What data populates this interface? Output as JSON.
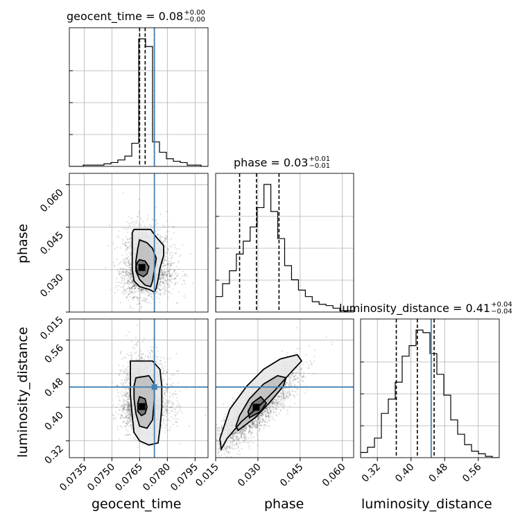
{
  "chart_data": {
    "type": "corner",
    "parameters": [
      "geocent_time",
      "phase",
      "luminosity_distance"
    ],
    "truths": {
      "geocent_time": 0.0773,
      "phase": null,
      "luminosity_distance": 0.448
    },
    "titles": [
      {
        "param": "geocent_time",
        "text": "geocent_time = 0.08",
        "plus": "+0.00",
        "minus": "−0.00"
      },
      {
        "param": "phase",
        "text": "phase = 0.03",
        "plus": "+0.01",
        "minus": "−0.01"
      },
      {
        "param": "luminosity_distance",
        "text": "luminosity_distance = 0.41",
        "plus": "+0.04",
        "minus": "−0.04"
      }
    ],
    "axis_labels": {
      "geocent_time": "geocent_time",
      "phase": "phase",
      "luminosity_distance": "luminosity_distance"
    },
    "ranges": {
      "geocent_time": [
        0.0727,
        0.0802
      ],
      "phase": [
        0.015,
        0.064
      ],
      "luminosity_distance": [
        0.28,
        0.61
      ]
    },
    "ticks": {
      "geocent_time": [
        "0.0735",
        "0.0750",
        "0.0765",
        "0.0780",
        "0.0795"
      ],
      "phase": [
        "0.015",
        "0.030",
        "0.045",
        "0.060"
      ],
      "luminosity_distance": [
        "0.32",
        "0.40",
        "0.48",
        "0.56"
      ]
    },
    "quantiles": {
      "geocent_time": [
        0.0765,
        0.0768,
        0.0773
      ],
      "phase": [
        0.0235,
        0.0295,
        0.0375
      ],
      "luminosity_distance": [
        0.365,
        0.415,
        0.455
      ]
    },
    "histograms": {
      "geocent_time": {
        "edges_range": [
          0.0727,
          0.0802
        ],
        "counts": [
          0,
          0,
          1,
          1,
          1,
          2,
          3,
          5,
          8,
          18,
          99,
          93,
          19,
          11,
          6,
          4,
          3,
          1,
          1,
          0
        ]
      },
      "phase": {
        "edges_range": [
          0.015,
          0.064
        ],
        "counts": [
          12,
          22,
          32,
          45,
          55,
          66,
          81,
          99,
          78,
          57,
          36,
          25,
          17,
          12,
          8,
          6,
          5,
          3,
          1,
          1
        ]
      },
      "luminosity_distance": {
        "edges_range": [
          0.28,
          0.61
        ],
        "counts": [
          4,
          8,
          15,
          34,
          45,
          58,
          78,
          86,
          98,
          96,
          80,
          64,
          48,
          29,
          18,
          10,
          5,
          3,
          1,
          0
        ]
      }
    },
    "densities": {
      "geocent_time_vs_phase": {
        "center": [
          0.0767,
          0.0295
        ],
        "sigma": [
          0.0006,
          0.0055
        ]
      },
      "geocent_time_vs_luminosity_distance": {
        "center": [
          0.0766,
          0.41
        ],
        "sigma": [
          0.0006,
          0.04
        ]
      },
      "phase_vs_luminosity_distance": {
        "center": [
          0.0295,
          0.395
        ],
        "correlation": 0.85,
        "sigma": [
          0.0075,
          0.05
        ]
      }
    },
    "contours": {
      "geocent_time_vs_phase": [
        [
          [
            0.0762,
            0.0442
          ],
          [
            0.0771,
            0.0442
          ],
          [
            0.0774,
            0.0415
          ],
          [
            0.0778,
            0.0385
          ],
          [
            0.0778,
            0.035
          ],
          [
            0.0776,
            0.0305
          ],
          [
            0.0775,
            0.0265
          ],
          [
            0.0774,
            0.0235
          ],
          [
            0.0773,
            0.022
          ],
          [
            0.077,
            0.023
          ],
          [
            0.0765,
            0.024
          ],
          [
            0.0762,
            0.026
          ],
          [
            0.0761,
            0.03
          ],
          [
            0.0761,
            0.035
          ],
          [
            0.0761,
            0.04
          ],
          [
            0.0761,
            0.043
          ]
        ],
        [
          [
            0.0765,
            0.0405
          ],
          [
            0.0769,
            0.0395
          ],
          [
            0.0772,
            0.0375
          ],
          [
            0.0774,
            0.034
          ],
          [
            0.0773,
            0.03
          ],
          [
            0.0772,
            0.026
          ],
          [
            0.0771,
            0.024
          ],
          [
            0.0768,
            0.0245
          ],
          [
            0.0765,
            0.0265
          ],
          [
            0.0763,
            0.0295
          ],
          [
            0.0763,
            0.033
          ],
          [
            0.0764,
            0.0375
          ]
        ],
        [
          [
            0.0765,
            0.0335
          ],
          [
            0.0768,
            0.033
          ],
          [
            0.077,
            0.031
          ],
          [
            0.0769,
            0.0285
          ],
          [
            0.0767,
            0.0275
          ],
          [
            0.0764,
            0.0285
          ],
          [
            0.0763,
            0.031
          ],
          [
            0.0764,
            0.0328
          ]
        ]
      ],
      "geocent_time_vs_luminosity_distance": [
        [
          [
            0.076,
            0.51
          ],
          [
            0.0772,
            0.51
          ],
          [
            0.0776,
            0.49
          ],
          [
            0.0777,
            0.45
          ],
          [
            0.0777,
            0.4
          ],
          [
            0.0776,
            0.35
          ],
          [
            0.0775,
            0.315
          ],
          [
            0.077,
            0.31
          ],
          [
            0.0765,
            0.32
          ],
          [
            0.0762,
            0.34
          ],
          [
            0.0761,
            0.38
          ],
          [
            0.076,
            0.43
          ],
          [
            0.076,
            0.48
          ]
        ],
        [
          [
            0.0763,
            0.47
          ],
          [
            0.077,
            0.475
          ],
          [
            0.0773,
            0.455
          ],
          [
            0.0773,
            0.42
          ],
          [
            0.0772,
            0.37
          ],
          [
            0.0769,
            0.35
          ],
          [
            0.0765,
            0.355
          ],
          [
            0.0763,
            0.385
          ],
          [
            0.0762,
            0.42
          ],
          [
            0.0762,
            0.45
          ]
        ],
        [
          [
            0.0765,
            0.425
          ],
          [
            0.0768,
            0.42
          ],
          [
            0.0769,
            0.4
          ],
          [
            0.0768,
            0.385
          ],
          [
            0.0766,
            0.38
          ],
          [
            0.0764,
            0.39
          ],
          [
            0.0764,
            0.41
          ]
        ]
      ],
      "phase_vs_luminosity_distance": [
        [
          [
            0.017,
            0.3
          ],
          [
            0.019,
            0.325
          ],
          [
            0.024,
            0.365
          ],
          [
            0.03,
            0.4
          ],
          [
            0.036,
            0.44
          ],
          [
            0.042,
            0.485
          ],
          [
            0.0455,
            0.51
          ],
          [
            0.044,
            0.525
          ],
          [
            0.038,
            0.515
          ],
          [
            0.032,
            0.49
          ],
          [
            0.026,
            0.45
          ],
          [
            0.02,
            0.395
          ],
          [
            0.0165,
            0.325
          ]
        ],
        [
          [
            0.023,
            0.345
          ],
          [
            0.029,
            0.375
          ],
          [
            0.034,
            0.41
          ],
          [
            0.039,
            0.45
          ],
          [
            0.04,
            0.47
          ],
          [
            0.037,
            0.475
          ],
          [
            0.032,
            0.455
          ],
          [
            0.027,
            0.42
          ],
          [
            0.0235,
            0.38
          ],
          [
            0.0222,
            0.355
          ]
        ],
        [
          [
            0.027,
            0.375
          ],
          [
            0.031,
            0.39
          ],
          [
            0.033,
            0.41
          ],
          [
            0.031,
            0.425
          ],
          [
            0.028,
            0.41
          ],
          [
            0.0265,
            0.39
          ]
        ]
      ]
    },
    "grid": true
  }
}
